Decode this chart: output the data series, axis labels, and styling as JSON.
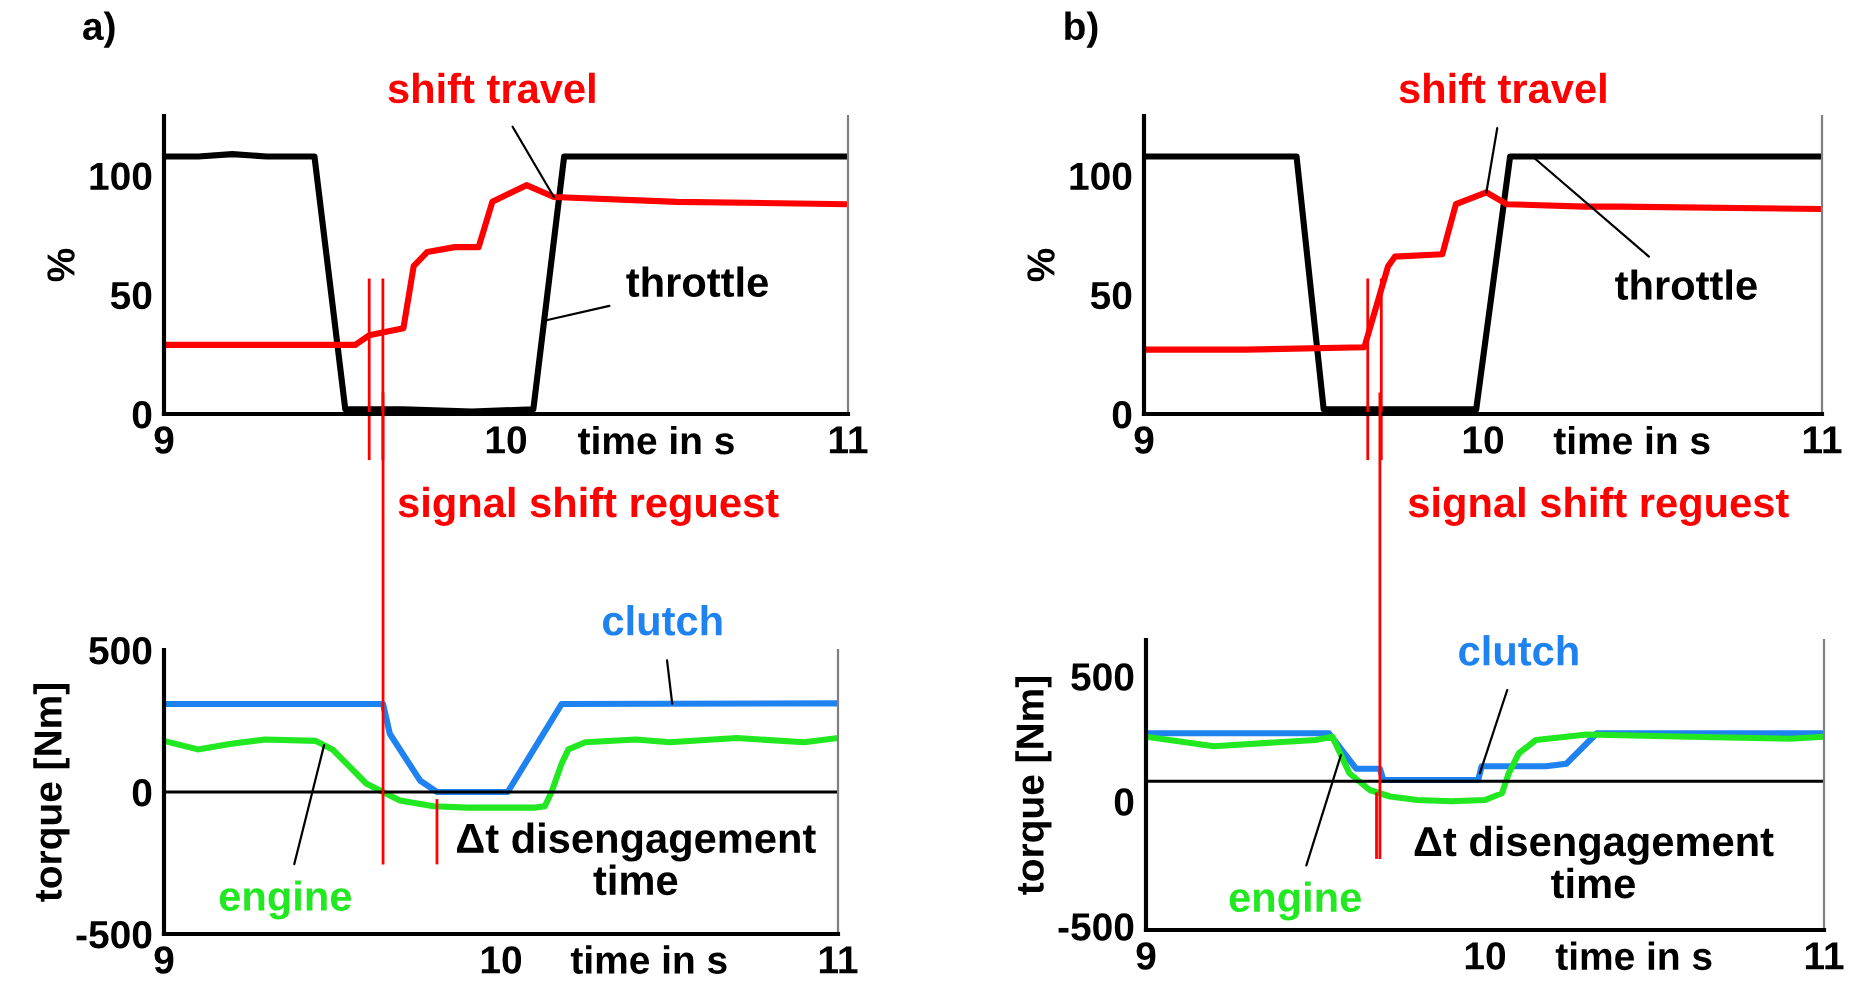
{
  "chart_data": [
    {
      "type": "line",
      "title": "a)",
      "xlabel": "time in s",
      "ylabel": "%",
      "xlim": [
        9,
        11
      ],
      "ylim": [
        0,
        125
      ],
      "xticks": [
        9,
        10,
        11
      ],
      "yticks": [
        0,
        50,
        100
      ],
      "grid": false,
      "legend": false,
      "series": [
        {
          "name": "throttle",
          "color": "#000000",
          "x": [
            9,
            9.1,
            9.2,
            9.3,
            9.44,
            9.53,
            9.7,
            9.9,
            10.08,
            10.17,
            10.4,
            10.7,
            11
          ],
          "values": [
            108,
            108,
            109,
            108,
            108,
            2,
            2,
            1,
            2,
            108,
            108,
            108,
            108
          ]
        },
        {
          "name": "shift travel",
          "color": "#ff0000",
          "x": [
            9,
            9.3,
            9.56,
            9.6,
            9.7,
            9.73,
            9.77,
            9.85,
            9.92,
            9.96,
            10.06,
            10.14,
            10.5,
            11
          ],
          "values": [
            29,
            29,
            29,
            33,
            36,
            62,
            68,
            70,
            70,
            89,
            96,
            91,
            89,
            88
          ]
        }
      ],
      "ref_lines": [
        {
          "axis": "x",
          "value": 9.6,
          "color": "#ff0000"
        },
        {
          "axis": "x",
          "value": 9.64,
          "color": "#ff0000",
          "label": "signal shift reguest"
        }
      ]
    },
    {
      "type": "line",
      "xlabel": "time in s",
      "ylabel": "torque [Nm]",
      "xlim": [
        9,
        11
      ],
      "ylim": [
        -500,
        500
      ],
      "xticks": [
        9,
        10,
        11
      ],
      "yticks": [
        -500,
        0,
        500
      ],
      "grid": false,
      "legend": false,
      "series": [
        {
          "name": "clutch",
          "color": "#1e82f0",
          "x": [
            9,
            9.65,
            9.67,
            9.76,
            9.81,
            10.02,
            10.18,
            11
          ],
          "values": [
            310,
            310,
            205,
            40,
            0,
            0,
            310,
            312
          ]
        },
        {
          "name": "engine",
          "color": "#22e822",
          "x": [
            9,
            9.1,
            9.2,
            9.3,
            9.45,
            9.5,
            9.55,
            9.6,
            9.7,
            9.8,
            9.9,
            10.0,
            10.1,
            10.13,
            10.15,
            10.18,
            10.2,
            10.25,
            10.4,
            10.5,
            10.7,
            10.9,
            11
          ],
          "values": [
            180,
            150,
            170,
            185,
            180,
            150,
            90,
            30,
            -30,
            -50,
            -55,
            -55,
            -55,
            -50,
            0,
            100,
            150,
            175,
            185,
            175,
            190,
            175,
            190
          ]
        }
      ],
      "ref_lines": [
        {
          "axis": "y",
          "value": 0,
          "color": "#000000"
        },
        {
          "axis": "x",
          "value": 9.65,
          "color": "#ff0000"
        },
        {
          "axis": "x",
          "value": 9.81,
          "color": "#ff0000",
          "label": "Δt disengagement\ntime"
        }
      ]
    },
    {
      "type": "line",
      "title": "b)",
      "xlabel": "time in s",
      "ylabel": "%",
      "xlim": [
        9,
        11
      ],
      "ylim": [
        0,
        125
      ],
      "xticks": [
        9,
        10,
        11
      ],
      "yticks": [
        0,
        50,
        100
      ],
      "grid": false,
      "legend": false,
      "series": [
        {
          "name": "throttle",
          "color": "#000000",
          "x": [
            9,
            9.2,
            9.45,
            9.53,
            9.7,
            9.98,
            10.08,
            10.3,
            10.6,
            11
          ],
          "values": [
            108,
            108,
            108,
            2,
            2,
            2,
            108,
            108,
            108,
            108
          ]
        },
        {
          "name": "shift travel",
          "color": "#ff0000",
          "x": [
            9,
            9.3,
            9.65,
            9.72,
            9.74,
            9.88,
            9.92,
            10.01,
            10.07,
            10.3,
            10.35,
            10.4,
            11
          ],
          "values": [
            27,
            27,
            28,
            62,
            66,
            67,
            88,
            93,
            88,
            87,
            87,
            87,
            86
          ]
        }
      ],
      "ref_lines": [
        {
          "axis": "x",
          "value": 9.66,
          "color": "#ff0000"
        },
        {
          "axis": "x",
          "value": 9.7,
          "color": "#ff0000",
          "label": "signal shift reguest"
        }
      ]
    },
    {
      "type": "line",
      "xlabel": "time in s",
      "ylabel": "torque [Nm]",
      "xlim": [
        9,
        11
      ],
      "ylim": [
        -515,
        645
      ],
      "xticks": [
        9,
        10,
        11
      ],
      "yticks": [
        -500,
        0,
        500
      ],
      "grid": false,
      "legend": false,
      "series": [
        {
          "name": "clutch",
          "color": "#1e82f0",
          "x": [
            9,
            9.54,
            9.62,
            9.69,
            9.7,
            9.98,
            9.99,
            10.18,
            10.24,
            10.33,
            11
          ],
          "values": [
            272,
            272,
            130,
            130,
            85,
            85,
            140,
            140,
            150,
            272,
            272
          ]
        },
        {
          "name": "engine",
          "color": "#22e822",
          "x": [
            9,
            9.2,
            9.5,
            9.55,
            9.6,
            9.66,
            9.72,
            9.8,
            9.9,
            10.0,
            10.05,
            10.07,
            10.1,
            10.15,
            10.3,
            10.6,
            10.9,
            11
          ],
          "values": [
            258,
            220,
            245,
            258,
            112,
            45,
            19,
            5,
            0,
            5,
            32,
            112,
            192,
            245,
            267,
            258,
            250,
            258
          ]
        }
      ],
      "ref_lines": [
        {
          "axis": "y",
          "value": 80,
          "color": "#000000"
        },
        {
          "axis": "x",
          "value": 9.69,
          "color": "#ff0000"
        },
        {
          "axis": "x",
          "value": 9.68,
          "color": "#ff0000",
          "label": "Δt disengagement\ntime"
        }
      ]
    }
  ]
}
